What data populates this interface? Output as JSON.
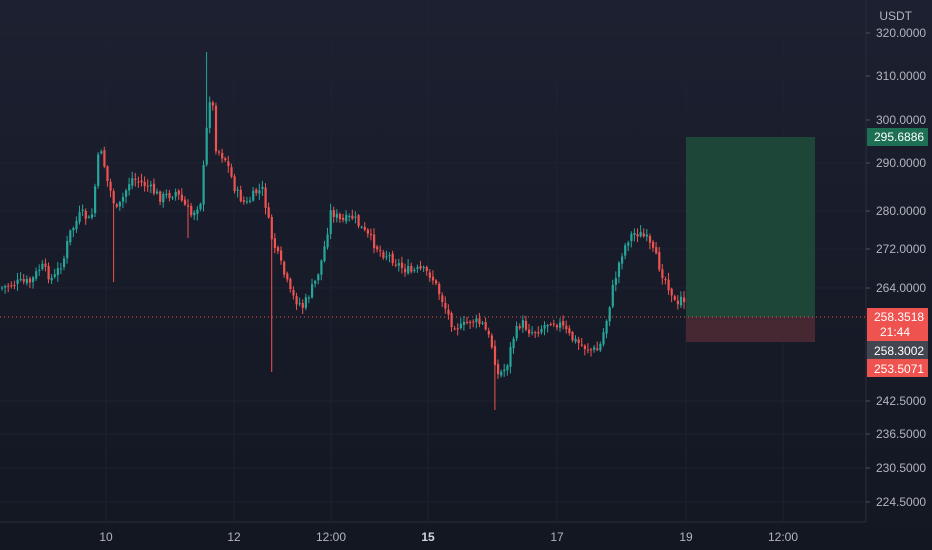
{
  "chart_data": {
    "type": "candlestick",
    "currency": "USDT",
    "y_ticks": [
      "320.0000",
      "310.0000",
      "300.0000",
      "290.0000",
      "280.0000",
      "272.0000",
      "264.0000",
      "242.5000",
      "236.5000",
      "230.5000",
      "224.5000"
    ],
    "x_ticks": [
      {
        "label": "10",
        "bold": false
      },
      {
        "label": "12",
        "bold": false
      },
      {
        "label": "12:00",
        "bold": false
      },
      {
        "label": "15",
        "bold": true
      },
      {
        "label": "17",
        "bold": false
      },
      {
        "label": "19",
        "bold": false
      },
      {
        "label": "12:00",
        "bold": false
      }
    ],
    "price_tags": {
      "target": "295.6886",
      "current": "258.3518",
      "countdown": "21:44",
      "entry": "258.3002",
      "stop": "253.5071"
    },
    "colors": {
      "up": "#26a69a",
      "down": "#ef5350",
      "target_zone": "#1e4d3b",
      "stop_zone": "#4a2a33",
      "background": "#131722",
      "grid": "#1e2230"
    },
    "series": [
      {
        "name": "candles"
      }
    ]
  }
}
